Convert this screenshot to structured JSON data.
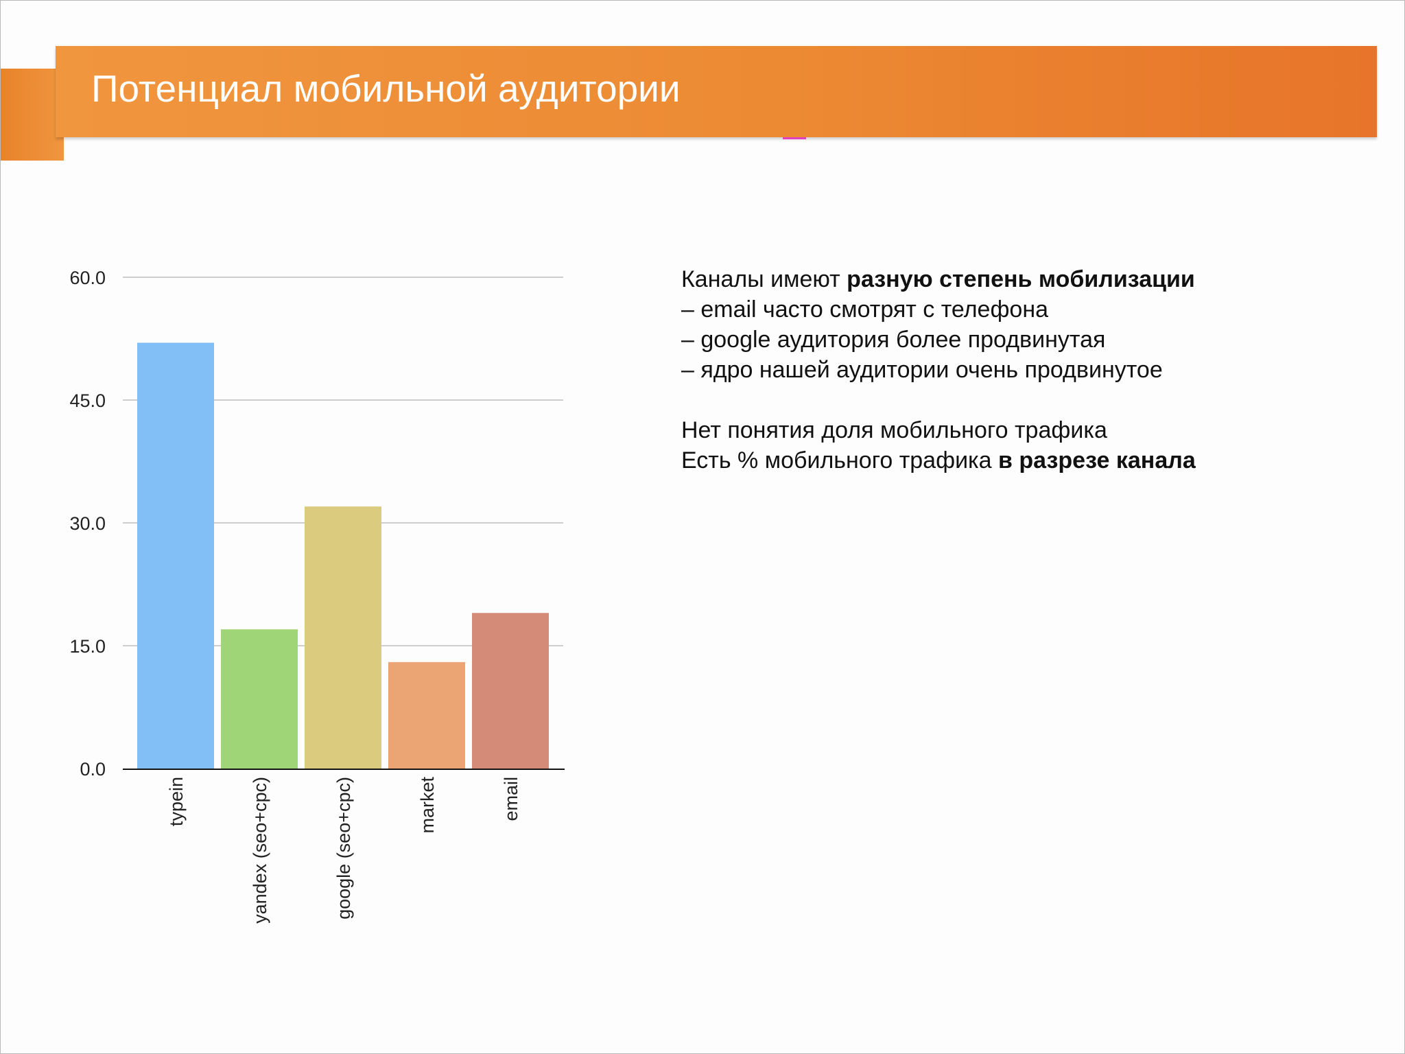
{
  "slide": {
    "title": "Потенциал мобильной аудитории"
  },
  "notes": {
    "line1_plain": "Каналы имеют ",
    "line1_bold": "разную степень мобилизации",
    "bullets": [
      "– email часто смотрят с телефона",
      "– google аудитория более продвинутая",
      "– ядро нашей аудитории очень продвинутое"
    ],
    "line5": "Нет понятия доля мобильного трафика",
    "line6_plain": "Есть % мобильного трафика ",
    "line6_bold": "в разрезе канала"
  },
  "chart_data": {
    "type": "bar",
    "categories": [
      "typein",
      "yandex (seo+cpc)",
      "google (seo+cpc)",
      "market",
      "email"
    ],
    "values": [
      52,
      17,
      32,
      13,
      19
    ],
    "colors": [
      "#82bff7",
      "#9fd477",
      "#dbcb7e",
      "#eba574",
      "#d48b78"
    ],
    "yticks": [
      "0.0",
      "15.0",
      "30.0",
      "45.0",
      "60.0"
    ],
    "ylim": [
      0,
      60
    ],
    "grid": true,
    "legend": "none"
  },
  "colors": {
    "title_bar": "#ec8a33",
    "title_text": "#ffffff"
  }
}
